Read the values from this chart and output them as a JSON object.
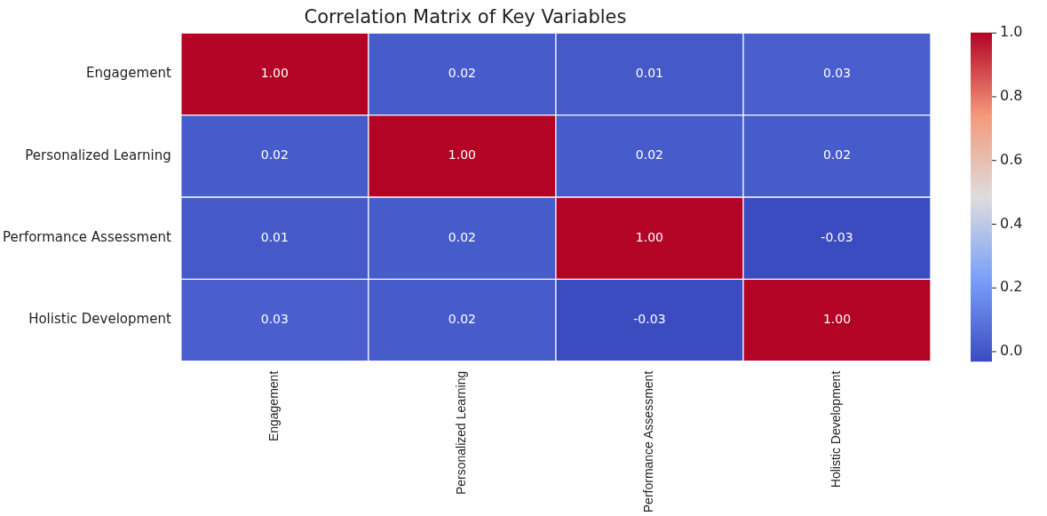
{
  "chart_data": {
    "type": "heatmap",
    "title": "Correlation Matrix of Key Variables",
    "categories": [
      "Engagement",
      "Personalized Learning",
      "Performance Assessment",
      "Holistic Development"
    ],
    "y_categories": [
      "Engagement",
      "Personalized Learning",
      "Performance Assessment",
      "Holistic Development"
    ],
    "cells": [
      [
        1.0,
        0.02,
        0.01,
        0.03
      ],
      [
        0.02,
        1.0,
        0.02,
        0.02
      ],
      [
        0.01,
        0.02,
        1.0,
        -0.03
      ],
      [
        0.03,
        0.02,
        -0.03,
        1.0
      ]
    ],
    "cell_labels": [
      [
        "1.00",
        "0.02",
        "0.01",
        "0.03"
      ],
      [
        "0.02",
        "1.00",
        "0.02",
        "0.02"
      ],
      [
        "0.01",
        "0.02",
        "1.00",
        "-0.03"
      ],
      [
        "0.03",
        "0.02",
        "-0.03",
        "1.00"
      ]
    ],
    "clim": [
      -0.03,
      1.0
    ],
    "cticks": [
      {
        "value": 0,
        "label": "0.0"
      },
      {
        "value": 0.2,
        "label": "0.2"
      },
      {
        "value": 0.4,
        "label": "0.4"
      },
      {
        "value": 0.6,
        "label": "0.6"
      },
      {
        "value": 0.8,
        "label": "0.8"
      },
      {
        "value": 1.0,
        "label": "1.0"
      }
    ]
  }
}
